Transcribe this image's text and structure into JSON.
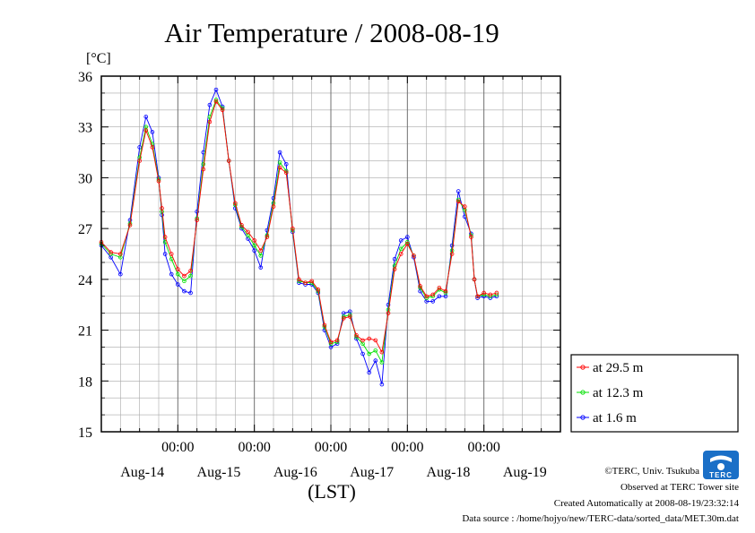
{
  "chart_data": {
    "type": "line",
    "title": "Air Temperature / 2008-08-19",
    "ylabel": "[°C]",
    "xlabel": "(LST)",
    "ylim": [
      15,
      36
    ],
    "yticks": [
      15,
      18,
      21,
      24,
      27,
      30,
      33,
      36
    ],
    "x_range_hours": [
      0,
      144
    ],
    "time_tick_labels": [
      "00:00",
      "00:00",
      "00:00",
      "00:00",
      "00:00"
    ],
    "time_tick_hours": [
      24,
      48,
      72,
      96,
      120
    ],
    "date_labels": [
      "Aug-14",
      "Aug-15",
      "Aug-16",
      "Aug-17",
      "Aug-18",
      "Aug-19"
    ],
    "date_label_hours": [
      12,
      36,
      60,
      84,
      108,
      132
    ],
    "grid": true,
    "legend_position": "right-bottom",
    "series": [
      {
        "name": "at 29.5 m",
        "color": "#ff0000",
        "marker": "circle",
        "points": [
          [
            0,
            26.2
          ],
          [
            3,
            25.6
          ],
          [
            6,
            25.5
          ],
          [
            9,
            27.2
          ],
          [
            12,
            31.0
          ],
          [
            14,
            32.8
          ],
          [
            16,
            31.8
          ],
          [
            18,
            29.8
          ],
          [
            19,
            28.2
          ],
          [
            20,
            26.5
          ],
          [
            22,
            25.5
          ],
          [
            24,
            24.6
          ],
          [
            26,
            24.2
          ],
          [
            28,
            24.5
          ],
          [
            30,
            27.5
          ],
          [
            32,
            30.5
          ],
          [
            34,
            33.3
          ],
          [
            36,
            34.5
          ],
          [
            38,
            34.0
          ],
          [
            40,
            31.0
          ],
          [
            42,
            28.5
          ],
          [
            44,
            27.2
          ],
          [
            46,
            26.8
          ],
          [
            48,
            26.3
          ],
          [
            50,
            25.7
          ],
          [
            52,
            26.5
          ],
          [
            54,
            28.3
          ],
          [
            56,
            30.6
          ],
          [
            58,
            30.3
          ],
          [
            60,
            27.0
          ],
          [
            62,
            24.0
          ],
          [
            64,
            23.8
          ],
          [
            66,
            23.9
          ],
          [
            68,
            23.4
          ],
          [
            70,
            21.3
          ],
          [
            72,
            20.3
          ],
          [
            74,
            20.4
          ],
          [
            76,
            21.7
          ],
          [
            78,
            21.8
          ],
          [
            80,
            20.7
          ],
          [
            82,
            20.4
          ],
          [
            84,
            20.5
          ],
          [
            86,
            20.4
          ],
          [
            88,
            19.7
          ],
          [
            90,
            22.0
          ],
          [
            92,
            24.6
          ],
          [
            94,
            25.5
          ],
          [
            96,
            26.1
          ],
          [
            98,
            25.4
          ],
          [
            100,
            23.6
          ],
          [
            102,
            23.0
          ],
          [
            104,
            23.1
          ],
          [
            106,
            23.5
          ],
          [
            108,
            23.3
          ],
          [
            110,
            25.5
          ],
          [
            112,
            28.6
          ],
          [
            114,
            28.3
          ],
          [
            116,
            26.5
          ],
          [
            117,
            24.0
          ],
          [
            118,
            23.0
          ],
          [
            120,
            23.2
          ],
          [
            122,
            23.1
          ],
          [
            124,
            23.2
          ]
        ]
      },
      {
        "name": "at 12.3 m",
        "color": "#00e000",
        "marker": "circle",
        "points": [
          [
            0,
            26.1
          ],
          [
            3,
            25.5
          ],
          [
            6,
            25.3
          ],
          [
            9,
            27.3
          ],
          [
            12,
            31.2
          ],
          [
            14,
            33.0
          ],
          [
            16,
            32.0
          ],
          [
            18,
            29.9
          ],
          [
            19,
            28.0
          ],
          [
            20,
            26.2
          ],
          [
            22,
            25.2
          ],
          [
            24,
            24.3
          ],
          [
            26,
            23.9
          ],
          [
            28,
            24.2
          ],
          [
            30,
            27.6
          ],
          [
            32,
            30.8
          ],
          [
            34,
            33.6
          ],
          [
            36,
            34.6
          ],
          [
            38,
            34.1
          ],
          [
            40,
            31.0
          ],
          [
            42,
            28.4
          ],
          [
            44,
            27.1
          ],
          [
            46,
            26.6
          ],
          [
            48,
            26.0
          ],
          [
            50,
            25.4
          ],
          [
            52,
            26.6
          ],
          [
            54,
            28.5
          ],
          [
            56,
            30.9
          ],
          [
            58,
            30.4
          ],
          [
            60,
            26.9
          ],
          [
            62,
            23.9
          ],
          [
            64,
            23.8
          ],
          [
            66,
            23.8
          ],
          [
            68,
            23.3
          ],
          [
            70,
            21.2
          ],
          [
            72,
            20.2
          ],
          [
            74,
            20.3
          ],
          [
            76,
            21.8
          ],
          [
            78,
            21.9
          ],
          [
            80,
            20.6
          ],
          [
            82,
            20.2
          ],
          [
            84,
            19.6
          ],
          [
            86,
            19.8
          ],
          [
            88,
            19.1
          ],
          [
            90,
            22.2
          ],
          [
            92,
            24.8
          ],
          [
            94,
            25.8
          ],
          [
            96,
            26.2
          ],
          [
            98,
            25.4
          ],
          [
            100,
            23.5
          ],
          [
            102,
            22.9
          ],
          [
            104,
            23.0
          ],
          [
            106,
            23.4
          ],
          [
            108,
            23.2
          ],
          [
            110,
            25.7
          ],
          [
            112,
            28.7
          ],
          [
            114,
            28.1
          ],
          [
            116,
            26.6
          ],
          [
            117,
            24.0
          ],
          [
            118,
            23.0
          ],
          [
            120,
            23.1
          ],
          [
            122,
            23.0
          ],
          [
            124,
            23.1
          ]
        ]
      },
      {
        "name": "at 1.6 m",
        "color": "#0000ff",
        "marker": "circle",
        "points": [
          [
            0,
            26.0
          ],
          [
            3,
            25.3
          ],
          [
            6,
            24.3
          ],
          [
            9,
            27.5
          ],
          [
            12,
            31.8
          ],
          [
            14,
            33.6
          ],
          [
            16,
            32.7
          ],
          [
            18,
            30.0
          ],
          [
            19,
            27.8
          ],
          [
            20,
            25.5
          ],
          [
            22,
            24.3
          ],
          [
            24,
            23.7
          ],
          [
            26,
            23.3
          ],
          [
            28,
            23.2
          ],
          [
            30,
            28.0
          ],
          [
            32,
            31.5
          ],
          [
            34,
            34.3
          ],
          [
            36,
            35.2
          ],
          [
            38,
            34.2
          ],
          [
            40,
            31.0
          ],
          [
            42,
            28.2
          ],
          [
            44,
            27.0
          ],
          [
            46,
            26.4
          ],
          [
            48,
            25.7
          ],
          [
            50,
            24.7
          ],
          [
            52,
            26.9
          ],
          [
            54,
            28.8
          ],
          [
            56,
            31.5
          ],
          [
            58,
            30.8
          ],
          [
            60,
            26.8
          ],
          [
            62,
            23.8
          ],
          [
            64,
            23.7
          ],
          [
            66,
            23.7
          ],
          [
            68,
            23.2
          ],
          [
            70,
            21.0
          ],
          [
            72,
            20.0
          ],
          [
            74,
            20.2
          ],
          [
            76,
            22.0
          ],
          [
            78,
            22.1
          ],
          [
            80,
            20.5
          ],
          [
            82,
            19.6
          ],
          [
            84,
            18.5
          ],
          [
            86,
            19.2
          ],
          [
            88,
            17.8
          ],
          [
            90,
            22.5
          ],
          [
            92,
            25.2
          ],
          [
            94,
            26.3
          ],
          [
            96,
            26.5
          ],
          [
            98,
            25.3
          ],
          [
            100,
            23.3
          ],
          [
            102,
            22.7
          ],
          [
            104,
            22.7
          ],
          [
            106,
            23.0
          ],
          [
            108,
            23.0
          ],
          [
            110,
            26.0
          ],
          [
            112,
            29.2
          ],
          [
            114,
            27.7
          ],
          [
            116,
            26.7
          ],
          [
            117,
            24.0
          ],
          [
            118,
            22.9
          ],
          [
            120,
            23.0
          ],
          [
            122,
            22.9
          ],
          [
            124,
            23.0
          ]
        ]
      }
    ]
  },
  "footer": {
    "copyright": "©TERC, Univ. Tsukuba",
    "observed": "Observed at TERC Tower site",
    "created": "Created Automatically at 2008-08-19/23:32:14",
    "source": "Data source : /home/hojyo/new/TERC-data/sorted_data/MET.30m.dat"
  },
  "logo": {
    "text": "TERC",
    "color": "#1a6fc7"
  }
}
